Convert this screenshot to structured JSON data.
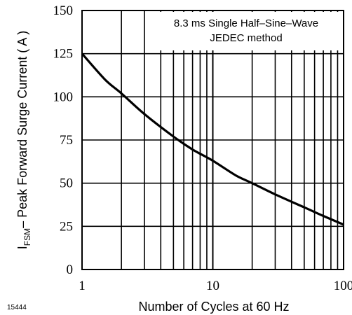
{
  "figure_id": "15444",
  "chart_data": {
    "type": "line",
    "x_scale": "log",
    "xlabel": "Number of Cycles at 60 Hz",
    "ylabel": {
      "prefix": "I",
      "subscript": "FSM",
      "rest": "– Peak Forward Surge Current ( A )"
    },
    "xlim": [
      1,
      100
    ],
    "ylim": [
      0,
      150
    ],
    "x_ticks": [
      {
        "value": 1,
        "label": "1"
      },
      {
        "value": 10,
        "label": "10"
      },
      {
        "value": 100,
        "label": "100"
      }
    ],
    "y_ticks": [
      {
        "value": 0,
        "label": "0"
      },
      {
        "value": 25,
        "label": "25"
      },
      {
        "value": 50,
        "label": "50"
      },
      {
        "value": 75,
        "label": "75"
      },
      {
        "value": 100,
        "label": "100"
      },
      {
        "value": 125,
        "label": "125"
      },
      {
        "value": 150,
        "label": "150"
      }
    ],
    "annotation": [
      "8.3 ms Single Half–Sine–Wave",
      "JEDEC method"
    ],
    "grid": true,
    "series": [
      {
        "color": "#000000",
        "x": [
          1,
          1.5,
          2,
          3,
          5,
          7,
          10,
          15,
          20,
          30,
          50,
          70,
          100
        ],
        "y": [
          125,
          110,
          102,
          90,
          77,
          69.5,
          63,
          54.5,
          50,
          43.5,
          36,
          31,
          26
        ]
      }
    ]
  }
}
